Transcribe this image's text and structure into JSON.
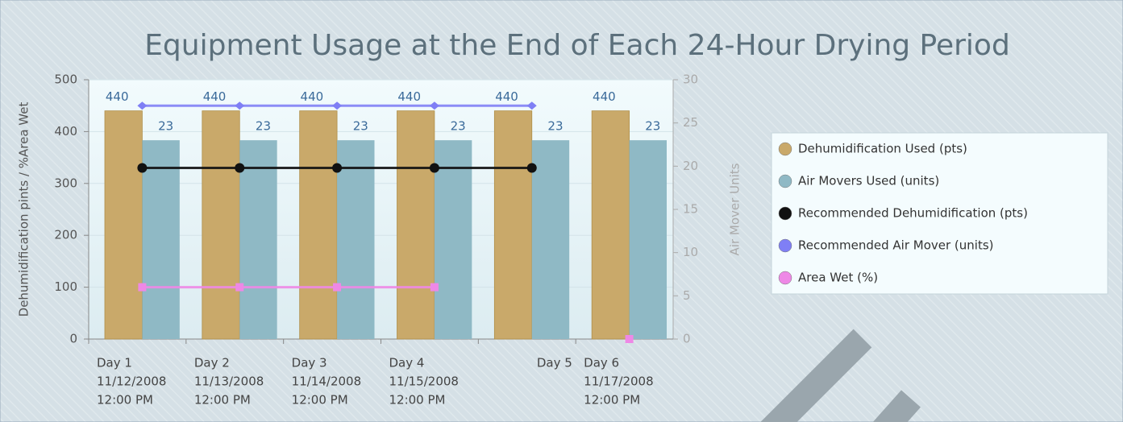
{
  "chart_data": {
    "type": "bar",
    "title": "Equipment Usage at the End of Each 24-Hour Drying Period",
    "y_label": "Dehumidification pints / %Area Wet",
    "y2_label": "Air Mover Units",
    "categories": [
      [
        "Day 1",
        "11/12/2008",
        "12:00 PM"
      ],
      [
        "Day 2",
        "11/13/2008",
        "12:00 PM"
      ],
      [
        "Day 3",
        "11/14/2008",
        "12:00 PM"
      ],
      [
        "Day 4",
        "11/15/2008",
        "12:00 PM"
      ],
      [
        "Day 5"
      ],
      [
        "Day 6",
        "11/17/2008",
        "12:00 PM"
      ]
    ],
    "ylim": [
      0,
      500
    ],
    "yticks": [
      0,
      100,
      200,
      300,
      400,
      500
    ],
    "y2lim": [
      0,
      30
    ],
    "y2ticks": [
      0,
      5,
      10,
      15,
      20,
      25,
      30
    ],
    "grid": true,
    "legend": "right",
    "series": [
      {
        "name": "Dehumidification Used (pts)",
        "kind": "bar",
        "color": "#c9a96a",
        "values": [
          440,
          440,
          440,
          440,
          440,
          440
        ],
        "data_labels": true
      },
      {
        "name": "Air Movers Used (units)",
        "kind": "bar",
        "axis": "y2",
        "color": "#8fb9c5",
        "values": [
          23,
          23,
          23,
          23,
          23,
          23
        ],
        "data_labels": true
      },
      {
        "name": "Recommended Dehumidification (pts)",
        "kind": "line",
        "color": "#111111",
        "marker": "circle",
        "values": [
          330,
          330,
          330,
          330,
          330,
          null
        ]
      },
      {
        "name": "Recommended Air Mover (units)",
        "kind": "line",
        "axis": "y2",
        "color": "#7f7ff5",
        "marker": "diamond",
        "values": [
          27,
          27,
          27,
          27,
          27,
          null
        ]
      },
      {
        "name": "Area Wet (%)",
        "kind": "line",
        "color": "#ee88e6",
        "marker": "square",
        "values": [
          100,
          100,
          100,
          100,
          null,
          0
        ]
      }
    ]
  }
}
